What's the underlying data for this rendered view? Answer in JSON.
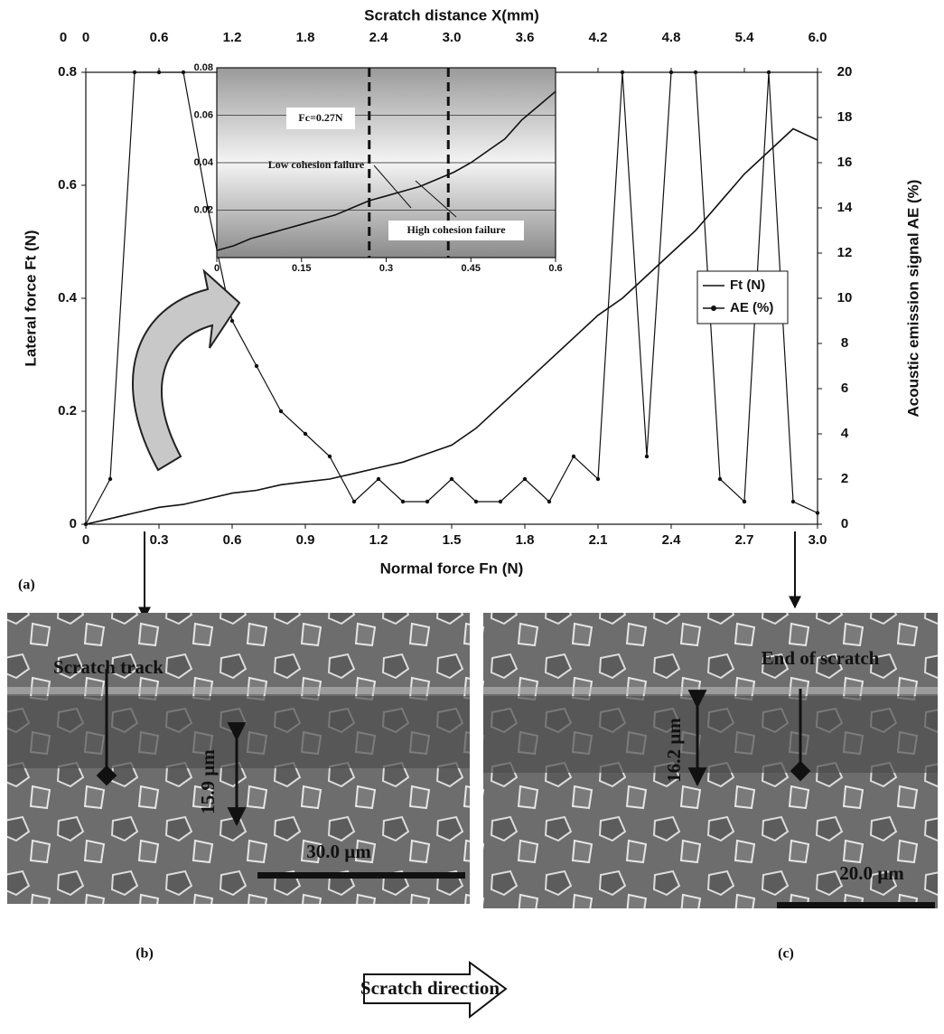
{
  "chart_data": [
    {
      "type": "line",
      "x_label": "Normal force Fn (N)",
      "y_label": "Lateral force Ft (N)",
      "y2_label": "Acoustic emission signal AE (%)",
      "x2_label": "Scratch distance X(mm)",
      "x2_extra_label": "0",
      "x": [
        0,
        0.1,
        0.2,
        0.3,
        0.4,
        0.5,
        0.6,
        0.7,
        0.8,
        0.9,
        1.0,
        1.1,
        1.2,
        1.3,
        1.4,
        1.5,
        1.6,
        1.7,
        1.8,
        1.9,
        2.0,
        2.1,
        2.2,
        2.3,
        2.4,
        2.5,
        2.6,
        2.7,
        2.8,
        2.9,
        3.0
      ],
      "series": [
        {
          "name": "Ft (N)",
          "color": "#111111",
          "values": [
            0,
            0.01,
            0.02,
            0.03,
            0.035,
            0.045,
            0.055,
            0.06,
            0.07,
            0.075,
            0.08,
            0.09,
            0.1,
            0.11,
            0.125,
            0.14,
            0.17,
            0.21,
            0.25,
            0.29,
            0.33,
            0.37,
            0.4,
            0.44,
            0.48,
            0.52,
            0.57,
            0.62,
            0.66,
            0.7,
            0.68
          ]
        },
        {
          "name": "AE (%)",
          "color": "#111111",
          "axis": "y2",
          "marker": true,
          "values": [
            0,
            2,
            20,
            20,
            20,
            14,
            9,
            7,
            5,
            4,
            3,
            1,
            2,
            1,
            1,
            2,
            1,
            1,
            2,
            1,
            3,
            2,
            20,
            3,
            20,
            20,
            2,
            1,
            20,
            1,
            0.5
          ]
        }
      ],
      "xlim": [
        0,
        3
      ],
      "xticks": [
        0,
        0.3,
        0.6,
        0.9,
        1.2,
        1.5,
        1.8,
        2.1,
        2.4,
        2.7,
        {
          "value": 3,
          "label": "3.0"
        }
      ],
      "ylim": [
        0,
        0.8
      ],
      "yticks": [
        0,
        0.2,
        0.4,
        0.6,
        0.8
      ],
      "y2lim": [
        0,
        20
      ],
      "y2ticks": [
        0,
        2,
        4,
        6,
        8,
        10,
        12,
        14,
        16,
        18,
        20
      ],
      "x2lim": [
        0,
        6
      ],
      "x2ticks": [
        0,
        0.6,
        1.2,
        1.8,
        2.4,
        {
          "value": 3,
          "label": "3.0"
        },
        3.6,
        4.2,
        4.8,
        5.4,
        {
          "value": 6,
          "label": "6.0"
        }
      ],
      "legend": "right",
      "grid": false
    },
    {
      "type": "line",
      "x": [
        0,
        0.03,
        0.06,
        0.09,
        0.12,
        0.15,
        0.18,
        0.21,
        0.24,
        0.27,
        0.3,
        0.33,
        0.36,
        0.39,
        0.42,
        0.45,
        0.48,
        0.51,
        0.54,
        0.57,
        0.6
      ],
      "series": [
        {
          "color": "#111111",
          "values": [
            0.003,
            0.005,
            0.008,
            0.01,
            0.012,
            0.014,
            0.016,
            0.018,
            0.021,
            0.024,
            0.026,
            0.028,
            0.03,
            0.033,
            0.036,
            0.04,
            0.045,
            0.05,
            0.058,
            0.064,
            0.07
          ]
        }
      ],
      "xlim": [
        0,
        0.6
      ],
      "xticks": [
        0,
        0.15,
        0.3,
        0.45,
        0.6
      ],
      "ylim": [
        0,
        0.08
      ],
      "yticks": [
        0.02,
        0.04,
        0.06,
        0.08
      ],
      "vlines": [
        0.27,
        0.41
      ],
      "grid": true,
      "annotations": [
        "Fc=0.27N",
        "Low cohesion failure",
        "High cohesion failure"
      ]
    }
  ],
  "figure": {
    "panel_a": "(a)",
    "panel_b": "(b)",
    "panel_c": "(c)",
    "direction": "Scratch direction",
    "image_b": {
      "label": "Scratch track",
      "width": "15.9 µm",
      "scale": "30.0 µm"
    },
    "image_c": {
      "label": "End of scratch",
      "width": "16.2 µm",
      "scale": "20.0 µm"
    }
  }
}
